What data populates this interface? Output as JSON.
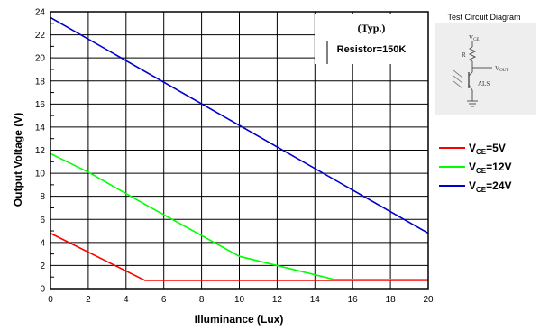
{
  "chart_data": {
    "type": "line",
    "xlabel": "Illuminance (Lux)",
    "ylabel": "Output Voltage (V)",
    "xlim": [
      0,
      20
    ],
    "ylim": [
      0,
      24
    ],
    "x_ticks": [
      "0",
      "2",
      "4",
      "6",
      "8",
      "10",
      "12",
      "14",
      "16",
      "18",
      "20"
    ],
    "y_ticks": [
      "0",
      "2",
      "4",
      "6",
      "8",
      "10",
      "12",
      "14",
      "16",
      "18",
      "20",
      "22",
      "24"
    ],
    "grid": true,
    "annotations": {
      "typ": "(Typ.)",
      "resistor": "Resistor=150K"
    },
    "legend_position": "right",
    "series": [
      {
        "name_main": "V",
        "name_sub": "CE",
        "name_suffix": "=5V",
        "color": "#ff0000",
        "x": [
          0,
          5,
          20
        ],
        "y": [
          4.8,
          0.7,
          0.7
        ]
      },
      {
        "name_main": "V",
        "name_sub": "CE",
        "name_suffix": "=12V",
        "color": "#00ff00",
        "x": [
          0,
          2,
          5,
          10,
          15,
          20
        ],
        "y": [
          11.7,
          10.1,
          7.3,
          2.8,
          0.8,
          0.8
        ]
      },
      {
        "name_main": "V",
        "name_sub": "CE",
        "name_suffix": "=24V",
        "color": "#0000cc",
        "x": [
          0,
          20
        ],
        "y": [
          23.5,
          4.8
        ]
      }
    ]
  },
  "inset": {
    "title": "Test Circuit Diagram",
    "vce_main": "V",
    "vce_sub": "CE",
    "resistor": "R",
    "vout_main": "V",
    "vout_sub": "OUT",
    "als": "ALS"
  }
}
